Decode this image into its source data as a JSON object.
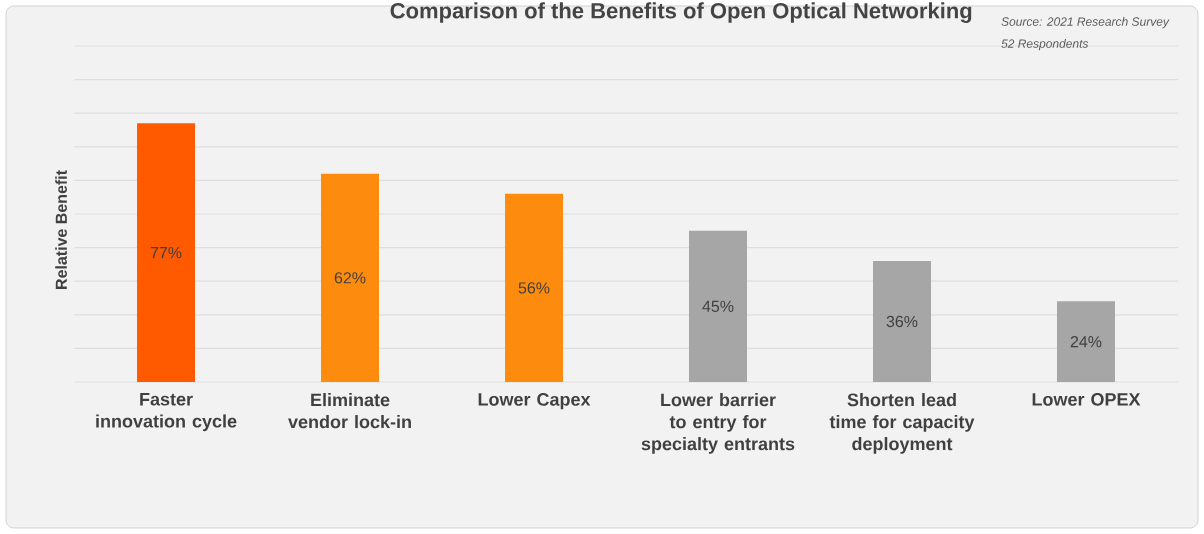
{
  "chart_data": {
    "type": "bar",
    "title": "Comparison of the Benefits of Open Optical Networking",
    "ylabel": "Relative Benefit",
    "annotations": [
      "Source: 2021 Research Survey",
      "52 Respondents"
    ],
    "categories": [
      "Faster innovation cycle",
      "Eliminate vendor lock-in",
      "Lower Capex",
      "Lower barrier to entry for specialty entrants",
      "Shorten lead time for capacity deployment",
      "Lower OPEX"
    ],
    "values": [
      77,
      62,
      56,
      45,
      36,
      24
    ],
    "value_labels": [
      "77%",
      "62%",
      "56%",
      "45%",
      "36%",
      "24%"
    ],
    "colors": [
      "#ff5a00",
      "#fd8c0e",
      "#fd8c0e",
      "#a6a6a6",
      "#a6a6a6",
      "#a6a6a6"
    ],
    "ylim": [
      0,
      100
    ],
    "yticks": [
      {
        "value": 0,
        "label": null
      },
      {
        "value": 10,
        "label": null
      },
      {
        "value": 20,
        "label": null
      },
      {
        "value": 30,
        "label": null
      },
      {
        "value": 40,
        "label": null
      },
      {
        "value": 50,
        "label": null
      },
      {
        "value": 60,
        "label": null
      },
      {
        "value": 70,
        "label": null
      },
      {
        "value": 80,
        "label": null
      },
      {
        "value": 90,
        "label": null
      },
      {
        "value": 100,
        "label": null
      }
    ],
    "tick_labels": "x",
    "grid": "y"
  }
}
